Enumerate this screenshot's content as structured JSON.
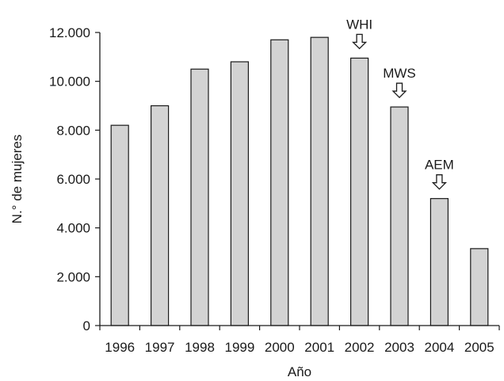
{
  "chart_data": {
    "type": "bar",
    "title": "",
    "xlabel": "Año",
    "ylabel": "N.° de mujeres",
    "categories": [
      "1996",
      "1997",
      "1998",
      "1999",
      "2000",
      "2001",
      "2002",
      "2003",
      "2004",
      "2005"
    ],
    "values": [
      8200,
      9000,
      10500,
      10800,
      11700,
      11800,
      10950,
      8950,
      5200,
      3150
    ],
    "ylim": [
      0,
      12000
    ],
    "yticks": [
      {
        "value": 0,
        "label": "0"
      },
      {
        "value": 2000,
        "label": "2.000"
      },
      {
        "value": 4000,
        "label": "4.000"
      },
      {
        "value": 6000,
        "label": "6.000"
      },
      {
        "value": 8000,
        "label": "8.000"
      },
      {
        "value": 10000,
        "label": "10.000"
      },
      {
        "value": 12000,
        "label": "12.000"
      }
    ],
    "grid": false,
    "bar_color": "#d3d3d3",
    "annotations": [
      {
        "text": "WHI",
        "category": "2002",
        "icon": "down-arrow-icon"
      },
      {
        "text": "MWS",
        "category": "2003",
        "icon": "down-arrow-icon"
      },
      {
        "text": "AEM",
        "category": "2004",
        "icon": "down-arrow-icon"
      }
    ]
  }
}
